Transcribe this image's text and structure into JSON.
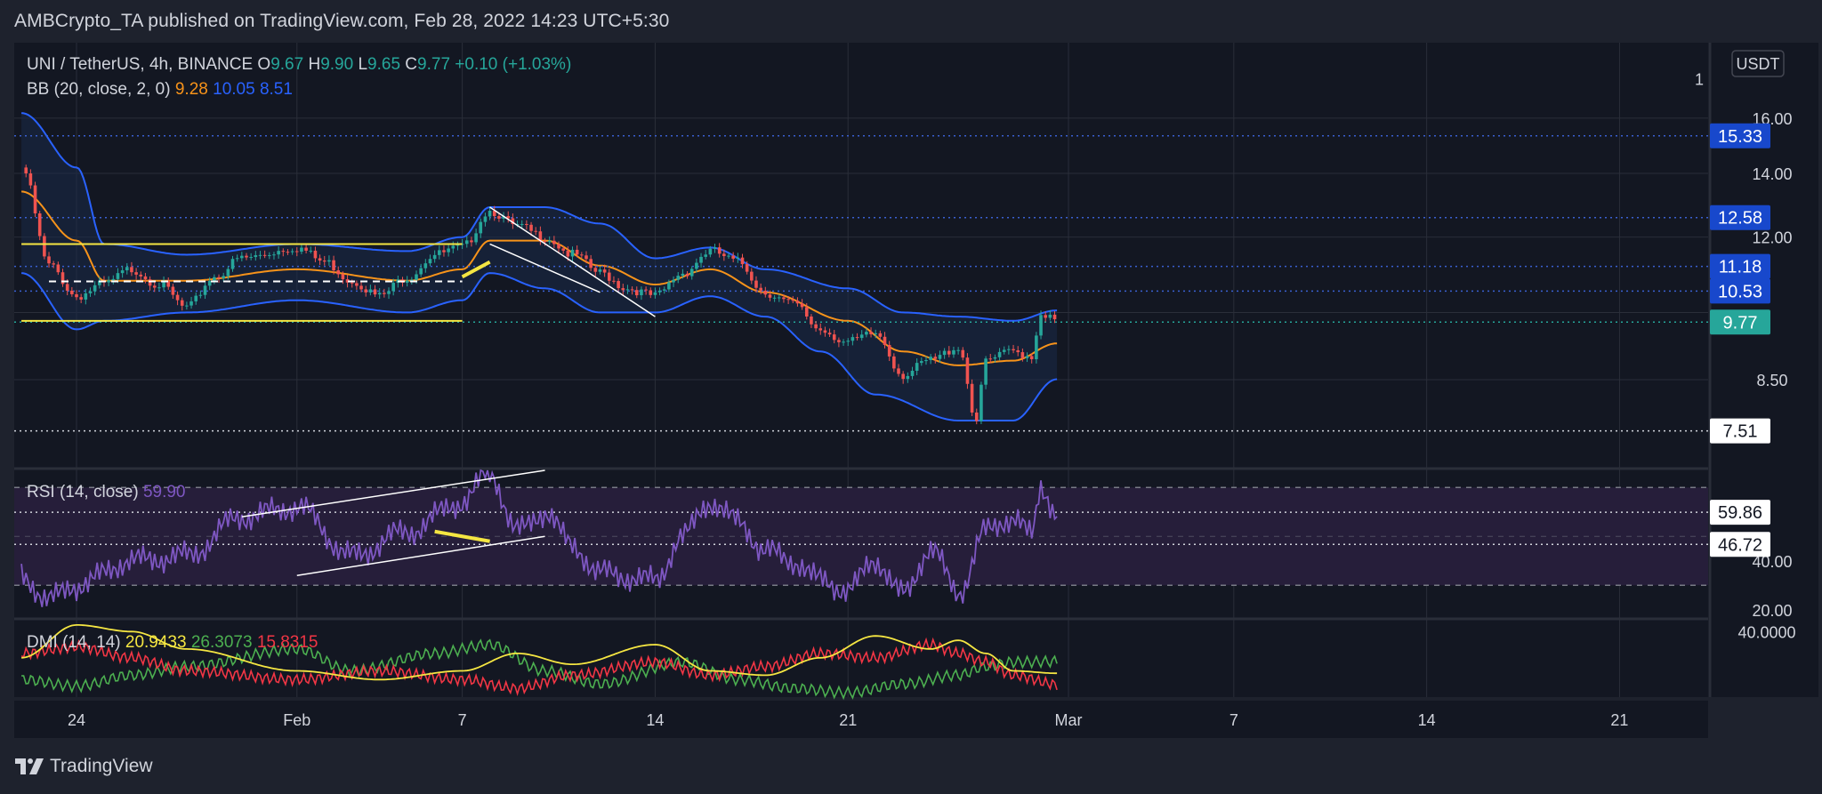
{
  "header": {
    "published": "AMBCrypto_TA published on TradingView.com, Feb 28, 2022 14:23 UTC+5:30"
  },
  "brand": {
    "name": "TradingView"
  },
  "colors": {
    "background": "#131722",
    "frame": "#1e222d",
    "grid": "#2a2e39",
    "text": "#d1d4dc",
    "bb_basis": "#f7931a",
    "bb_band": "#2962ff",
    "bb_fill": "#1a2a48",
    "rsi": "#7e57c2",
    "rsi_fill": "#261e3a",
    "dmi_adx": "#f5e642",
    "dmi_plus": "#4caf50",
    "dmi_minus": "#f23645",
    "candle_up": "#26a69a",
    "candle_down": "#ef5350",
    "annotation_yellow": "#f5e642",
    "price_tag": "#26a69a",
    "level_tag": "#1848cc"
  },
  "chart_data": {
    "type": "candlestick",
    "instrument": {
      "symbol": "UNI / TetherUS, 4h, BINANCE",
      "open_label": "O",
      "open": "9.67",
      "high_label": "H",
      "high": "9.90",
      "low_label": "L",
      "low": "9.65",
      "close_label": "C",
      "close": "9.77",
      "change": "+0.10 (+1.03%)"
    },
    "currency": "USDT",
    "bollinger": {
      "label": "BB (20, close, 2, 0)",
      "basis": "9.28",
      "upper": "10.05",
      "lower": "8.51"
    },
    "x_axis": {
      "ticks": [
        "24",
        "Feb",
        "7",
        "14",
        "21",
        "Mar",
        "7",
        "14",
        "21"
      ],
      "tick_dates": [
        "2022-01-24",
        "2022-02-01",
        "2022-02-07",
        "2022-02-14",
        "2022-02-21",
        "2022-03-01",
        "2022-03-07",
        "2022-03-14",
        "2022-03-21"
      ]
    },
    "price_axis": {
      "ticks": [
        "16.00",
        "14.00",
        "12.00",
        "8.50"
      ],
      "partial_top": "1"
    },
    "levels": [
      {
        "value": 15.33,
        "label": "15.33",
        "style": "dotted",
        "tag": "blue"
      },
      {
        "value": 12.58,
        "label": "12.58",
        "style": "dotted",
        "tag": "blue"
      },
      {
        "value": 11.18,
        "label": "11.18",
        "style": "dotted",
        "tag": "blue"
      },
      {
        "value": 10.53,
        "label": "10.53",
        "style": "dotted",
        "tag": "blue"
      },
      {
        "value": 9.77,
        "label": "9.77",
        "style": "dotted",
        "tag": "teal"
      },
      {
        "value": 7.51,
        "label": "7.51",
        "style": "dotted",
        "tag": "white"
      }
    ],
    "anchors": [
      [
        "2022-01-22",
        14.2
      ],
      [
        "2022-01-23",
        11.2
      ],
      [
        "2022-01-24",
        10.4
      ],
      [
        "2022-01-25",
        10.7
      ],
      [
        "2022-01-26",
        11.1
      ],
      [
        "2022-01-27",
        10.7
      ],
      [
        "2022-01-28",
        10.1
      ],
      [
        "2022-01-29",
        10.9
      ],
      [
        "2022-01-30",
        11.4
      ],
      [
        "2022-02-01",
        11.7
      ],
      [
        "2022-02-02",
        11.3
      ],
      [
        "2022-02-03",
        10.8
      ],
      [
        "2022-02-04",
        10.4
      ],
      [
        "2022-02-05",
        10.9
      ],
      [
        "2022-02-06",
        11.5
      ],
      [
        "2022-02-07",
        11.7
      ],
      [
        "2022-02-08",
        12.8
      ],
      [
        "2022-02-09",
        12.3
      ],
      [
        "2022-02-10",
        12.0
      ],
      [
        "2022-02-11",
        11.5
      ],
      [
        "2022-02-12",
        11.0
      ],
      [
        "2022-02-13",
        10.6
      ],
      [
        "2022-02-14",
        10.4
      ],
      [
        "2022-02-15",
        11.0
      ],
      [
        "2022-02-16",
        11.6
      ],
      [
        "2022-02-17",
        11.3
      ],
      [
        "2022-02-18",
        10.5
      ],
      [
        "2022-02-19",
        10.2
      ],
      [
        "2022-02-20",
        9.6
      ],
      [
        "2022-02-21",
        9.3
      ],
      [
        "2022-02-22",
        9.5
      ],
      [
        "2022-02-23",
        8.6
      ],
      [
        "2022-02-24",
        8.9
      ],
      [
        "2022-02-25",
        9.2
      ],
      [
        "2022-02-25T16:00",
        7.7
      ],
      [
        "2022-02-26",
        8.9
      ],
      [
        "2022-02-27",
        9.1
      ],
      [
        "2022-02-27T16:00",
        9.0
      ],
      [
        "2022-02-28",
        10.0
      ],
      [
        "2022-02-28T14:00",
        9.77
      ]
    ],
    "bb_upper_anchors": [
      [
        "2022-01-22",
        16.2
      ],
      [
        "2022-01-24",
        14.2
      ],
      [
        "2022-01-25",
        11.8
      ],
      [
        "2022-01-28",
        11.5
      ],
      [
        "2022-02-01",
        11.8
      ],
      [
        "2022-02-05",
        11.6
      ],
      [
        "2022-02-07",
        12.0
      ],
      [
        "2022-02-08",
        12.9
      ],
      [
        "2022-02-10",
        12.9
      ],
      [
        "2022-02-12",
        12.4
      ],
      [
        "2022-02-14",
        11.4
      ],
      [
        "2022-02-16",
        11.7
      ],
      [
        "2022-02-18",
        11.1
      ],
      [
        "2022-02-21",
        10.6
      ],
      [
        "2022-02-23",
        10.0
      ],
      [
        "2022-02-25",
        9.9
      ],
      [
        "2022-02-27",
        9.8
      ],
      [
        "2022-02-28T14:00",
        10.05
      ]
    ],
    "bb_lower_anchors": [
      [
        "2022-01-22",
        11.0
      ],
      [
        "2022-01-24",
        9.6
      ],
      [
        "2022-01-25",
        9.8
      ],
      [
        "2022-01-28",
        10.0
      ],
      [
        "2022-02-01",
        10.3
      ],
      [
        "2022-02-05",
        10.0
      ],
      [
        "2022-02-07",
        10.3
      ],
      [
        "2022-02-08",
        11.0
      ],
      [
        "2022-02-10",
        10.6
      ],
      [
        "2022-02-12",
        10.0
      ],
      [
        "2022-02-14",
        10.0
      ],
      [
        "2022-02-16",
        10.4
      ],
      [
        "2022-02-18",
        9.9
      ],
      [
        "2022-02-20",
        9.1
      ],
      [
        "2022-02-22",
        8.2
      ],
      [
        "2022-02-25",
        7.7
      ],
      [
        "2022-02-27",
        7.7
      ],
      [
        "2022-02-28T14:00",
        8.51
      ]
    ],
    "bb_basis_anchors": [
      [
        "2022-01-22",
        13.4
      ],
      [
        "2022-01-24",
        11.9
      ],
      [
        "2022-01-25",
        10.8
      ],
      [
        "2022-01-28",
        10.8
      ],
      [
        "2022-02-01",
        11.1
      ],
      [
        "2022-02-05",
        10.8
      ],
      [
        "2022-02-07",
        11.1
      ],
      [
        "2022-02-08",
        11.9
      ],
      [
        "2022-02-10",
        11.9
      ],
      [
        "2022-02-12",
        11.2
      ],
      [
        "2022-02-14",
        10.7
      ],
      [
        "2022-02-16",
        11.1
      ],
      [
        "2022-02-18",
        10.5
      ],
      [
        "2022-02-21",
        9.8
      ],
      [
        "2022-02-23",
        9.1
      ],
      [
        "2022-02-25",
        8.8
      ],
      [
        "2022-02-27",
        8.9
      ],
      [
        "2022-02-28T14:00",
        9.28
      ]
    ],
    "rsi": {
      "label": "RSI (14, close)",
      "value": "59.90",
      "ticks": [
        "40.00",
        "20.00"
      ],
      "levels": [
        {
          "value": 59.86,
          "label": "59.86"
        },
        {
          "value": 46.72,
          "label": "46.72"
        }
      ],
      "bands": [
        70,
        30
      ],
      "range": [
        17,
        77
      ],
      "anchors": [
        [
          "2022-01-22",
          34
        ],
        [
          "2022-01-23",
          24
        ],
        [
          "2022-01-24",
          30
        ],
        [
          "2022-01-26",
          40
        ],
        [
          "2022-01-28",
          42
        ],
        [
          "2022-01-30",
          58
        ],
        [
          "2022-02-01",
          62
        ],
        [
          "2022-02-03",
          42
        ],
        [
          "2022-02-05",
          52
        ],
        [
          "2022-02-07",
          64
        ],
        [
          "2022-02-08",
          76
        ],
        [
          "2022-02-09",
          52
        ],
        [
          "2022-02-10",
          60
        ],
        [
          "2022-02-11",
          46
        ],
        [
          "2022-02-12",
          35
        ],
        [
          "2022-02-14",
          32
        ],
        [
          "2022-02-15",
          50
        ],
        [
          "2022-02-16",
          64
        ],
        [
          "2022-02-17",
          56
        ],
        [
          "2022-02-18",
          44
        ],
        [
          "2022-02-19",
          40
        ],
        [
          "2022-02-20",
          32
        ],
        [
          "2022-02-21",
          28
        ],
        [
          "2022-02-22",
          40
        ],
        [
          "2022-02-23",
          26
        ],
        [
          "2022-02-24",
          45
        ],
        [
          "2022-02-25",
          27
        ],
        [
          "2022-02-26",
          52
        ],
        [
          "2022-02-27",
          58
        ],
        [
          "2022-02-27T16:00",
          50
        ],
        [
          "2022-02-28",
          70
        ],
        [
          "2022-02-28T14:00",
          59.9
        ]
      ]
    },
    "dmi": {
      "label": "DMI (14, 14)",
      "adx": "20.9433",
      "plus_di": "26.3073",
      "minus_di": "15.8315",
      "tick": "40.0000",
      "range": [
        10,
        45
      ],
      "adx_anchors": [
        [
          "2022-01-22",
          28
        ],
        [
          "2022-01-24",
          43
        ],
        [
          "2022-01-26",
          40
        ],
        [
          "2022-01-28",
          32
        ],
        [
          "2022-02-01",
          22
        ],
        [
          "2022-02-04",
          18
        ],
        [
          "2022-02-07",
          22
        ],
        [
          "2022-02-09",
          30
        ],
        [
          "2022-02-11",
          25
        ],
        [
          "2022-02-14",
          34
        ],
        [
          "2022-02-16",
          22
        ],
        [
          "2022-02-18",
          20
        ],
        [
          "2022-02-20",
          28
        ],
        [
          "2022-02-22",
          38
        ],
        [
          "2022-02-24",
          32
        ],
        [
          "2022-02-25",
          36
        ],
        [
          "2022-02-26",
          30
        ],
        [
          "2022-02-27",
          22
        ],
        [
          "2022-02-28T14:00",
          20.9
        ]
      ],
      "plus_anchors": [
        [
          "2022-01-22",
          18
        ],
        [
          "2022-01-24",
          15
        ],
        [
          "2022-01-26",
          20
        ],
        [
          "2022-01-28",
          24
        ],
        [
          "2022-02-01",
          32
        ],
        [
          "2022-02-03",
          22
        ],
        [
          "2022-02-06",
          30
        ],
        [
          "2022-02-08",
          34
        ],
        [
          "2022-02-10",
          22
        ],
        [
          "2022-02-12",
          16
        ],
        [
          "2022-02-15",
          26
        ],
        [
          "2022-02-17",
          18
        ],
        [
          "2022-02-19",
          14
        ],
        [
          "2022-02-21",
          12
        ],
        [
          "2022-02-23",
          16
        ],
        [
          "2022-02-25",
          20
        ],
        [
          "2022-02-26",
          24
        ],
        [
          "2022-02-27",
          26
        ],
        [
          "2022-02-28T14:00",
          26.3
        ]
      ],
      "minus_anchors": [
        [
          "2022-01-22",
          30
        ],
        [
          "2022-01-24",
          33
        ],
        [
          "2022-01-26",
          28
        ],
        [
          "2022-01-28",
          22
        ],
        [
          "2022-02-01",
          18
        ],
        [
          "2022-02-04",
          22
        ],
        [
          "2022-02-07",
          18
        ],
        [
          "2022-02-09",
          14
        ],
        [
          "2022-02-11",
          20
        ],
        [
          "2022-02-14",
          26
        ],
        [
          "2022-02-16",
          20
        ],
        [
          "2022-02-18",
          24
        ],
        [
          "2022-02-20",
          30
        ],
        [
          "2022-02-22",
          28
        ],
        [
          "2022-02-24",
          34
        ],
        [
          "2022-02-25",
          30
        ],
        [
          "2022-02-26",
          26
        ],
        [
          "2022-02-27",
          20
        ],
        [
          "2022-02-28T14:00",
          15.8
        ]
      ]
    },
    "drawings": {
      "range_top": {
        "from": [
          "2022-01-22",
          11.8
        ],
        "to": [
          "2022-02-07",
          11.8
        ]
      },
      "range_bottom": {
        "from": [
          "2022-01-22",
          9.8
        ],
        "to": [
          "2022-02-07",
          9.8
        ]
      },
      "range_mid_dashed": {
        "from": [
          "2022-01-23",
          10.78
        ],
        "to": [
          "2022-02-07",
          10.78
        ]
      },
      "wedge_upper": {
        "from": [
          "2022-02-08",
          12.9
        ],
        "to": [
          "2022-02-14",
          9.9
        ]
      },
      "wedge_lower": {
        "from": [
          "2022-02-08",
          11.8
        ],
        "to": [
          "2022-02-12",
          10.5
        ]
      },
      "price_divergence": {
        "from": [
          "2022-02-07",
          10.9
        ],
        "to": [
          "2022-02-08",
          11.3
        ]
      },
      "rsi_channel_upper": {
        "from": [
          "2022-01-30",
          58
        ],
        "to": [
          "2022-02-10",
          77
        ]
      },
      "rsi_channel_lower": {
        "from": [
          "2022-02-01",
          34
        ],
        "to": [
          "2022-02-10",
          50
        ]
      },
      "rsi_divergence": {
        "from": [
          "2022-02-06",
          52
        ],
        "to": [
          "2022-02-08",
          48
        ]
      }
    }
  }
}
